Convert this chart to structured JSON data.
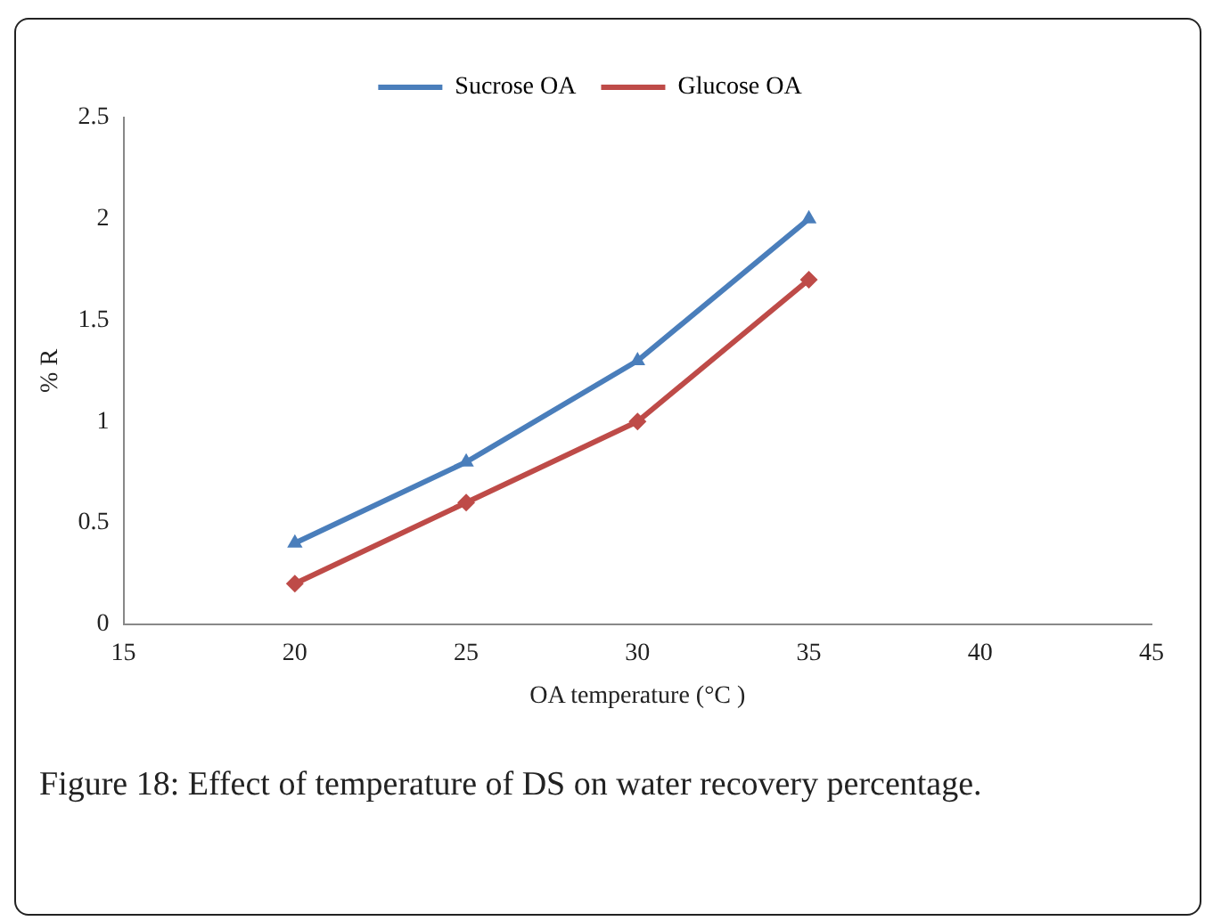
{
  "chart_data": {
    "type": "line",
    "xlabel": "OA temperature (°C )",
    "ylabel": "% R",
    "x": [
      20,
      25,
      30,
      35
    ],
    "series": [
      {
        "name": "Sucrose OA",
        "color": "#4a7ebb",
        "values": [
          0.4,
          0.8,
          1.3,
          2.0
        ],
        "marker": "triangle"
      },
      {
        "name": "Glucose OA",
        "color": "#be4b48",
        "values": [
          0.2,
          0.6,
          1.0,
          1.7
        ],
        "marker": "diamond"
      }
    ],
    "xlim": [
      15,
      45
    ],
    "xticks": [
      15,
      20,
      25,
      30,
      35,
      40,
      45
    ],
    "ylim": [
      0,
      2.5
    ],
    "yticks": [
      0,
      0.5,
      1,
      1.5,
      2,
      2.5
    ],
    "grid": false,
    "legend": "top",
    "line_style": "solid",
    "annotations": [
      "Figure 18: Effect of temperature of DS on water recovery percentage."
    ]
  }
}
